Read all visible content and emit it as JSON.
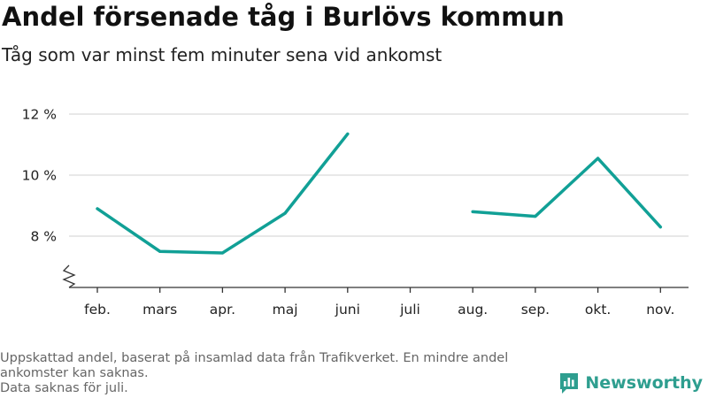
{
  "title": "Andel försenade tåg i Burlövs kommun",
  "subtitle": "Tåg som var minst fem minuter sena vid ankomst",
  "footer": {
    "line1": "Uppskattad andel, baserat på insamlad data från Trafikverket. En mindre andel ankomster kan saknas.",
    "line2": "Data saknas för juli."
  },
  "brand": {
    "name": "Newsworthy",
    "color": "#2e9e8f"
  },
  "colors": {
    "line": "#11a096",
    "grid": "#d9d9d9",
    "axis": "#333333"
  },
  "chart_data": {
    "type": "line",
    "categories": [
      "feb.",
      "mars",
      "apr.",
      "maj",
      "juni",
      "juli",
      "aug.",
      "sep.",
      "okt.",
      "nov."
    ],
    "series": [
      {
        "values": [
          8.9,
          7.5,
          7.45,
          8.75,
          11.35,
          null,
          8.8,
          8.65,
          10.55,
          8.3
        ]
      }
    ],
    "y_ticks": [
      8,
      10,
      12
    ],
    "y_tick_labels": [
      "8 %",
      "10 %",
      "12 %"
    ],
    "ylim": [
      6.3,
      12
    ],
    "y_axis_break": true,
    "grid": true,
    "legend": "none"
  }
}
